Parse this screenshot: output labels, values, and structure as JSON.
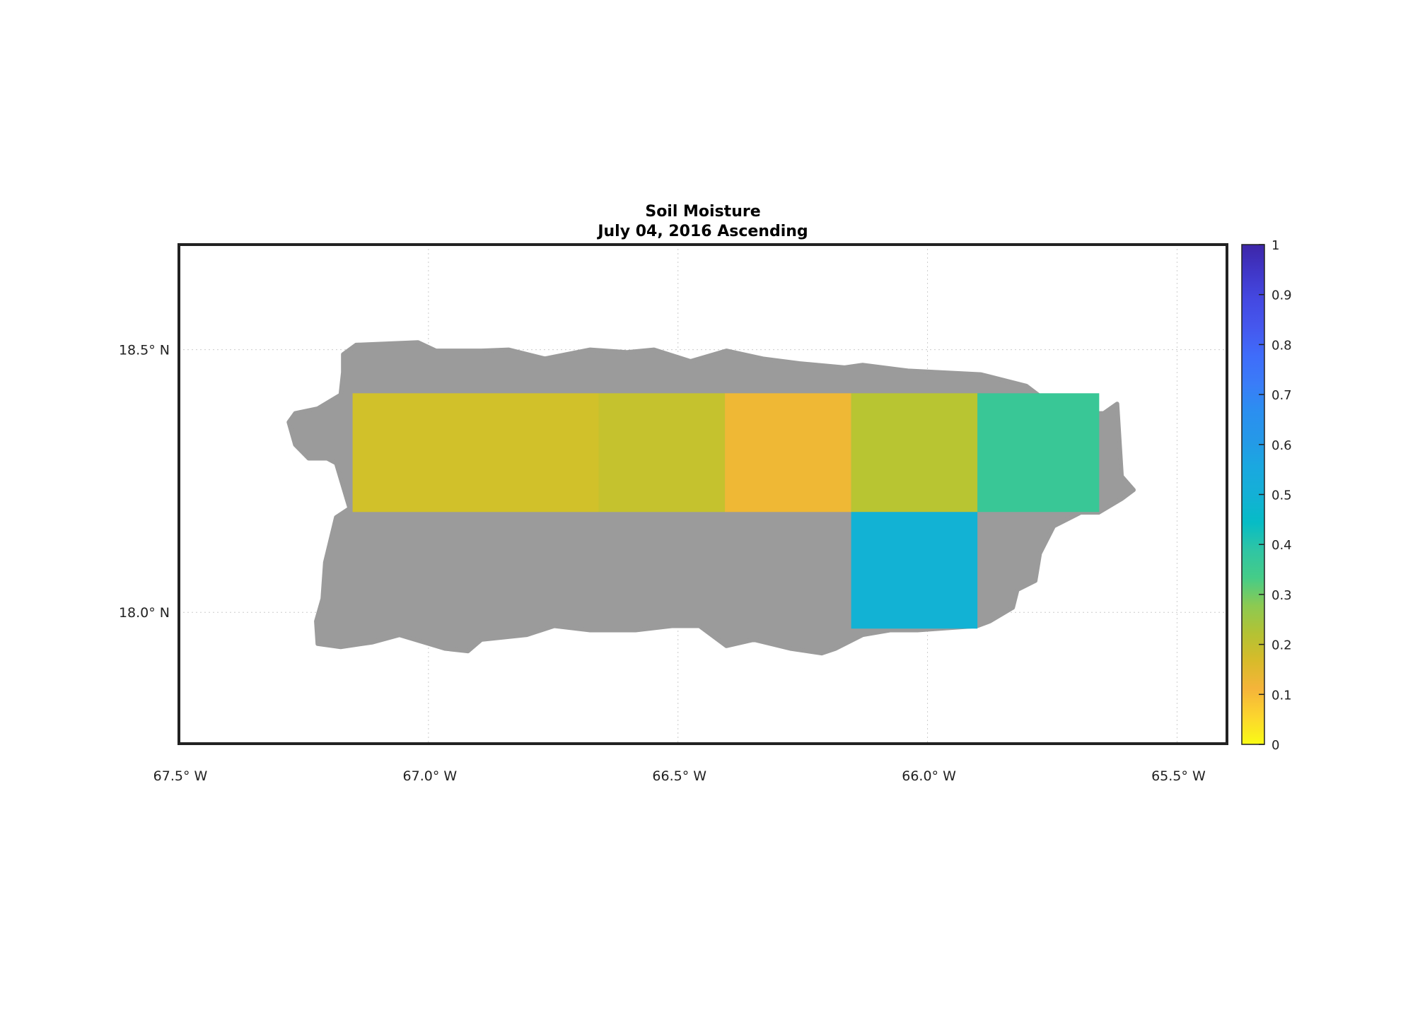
{
  "chart_data": {
    "type": "map",
    "title": "Soil Moisture",
    "subtitle": "July 04, 2016 Ascending",
    "xlim": [
      -67.5,
      -65.4
    ],
    "ylim": [
      17.75,
      18.7
    ],
    "grid": true,
    "x_ticks": [
      {
        "value": -67.5,
        "label": "67.5° W"
      },
      {
        "value": -67.0,
        "label": "67.0° W"
      },
      {
        "value": -66.5,
        "label": "66.5° W"
      },
      {
        "value": -66.0,
        "label": "66.0° W"
      },
      {
        "value": -65.5,
        "label": "65.5° W"
      }
    ],
    "y_ticks": [
      {
        "value": 18.5,
        "label": "18.5° N"
      },
      {
        "value": 18.0,
        "label": "18.0° N"
      }
    ],
    "land_color": "#9b9b9b",
    "land_outline": [
      [
        -67.171,
        18.491
      ],
      [
        -67.145,
        18.509
      ],
      [
        -67.021,
        18.514
      ],
      [
        -66.985,
        18.498
      ],
      [
        -66.894,
        18.498
      ],
      [
        -66.839,
        18.5
      ],
      [
        -66.767,
        18.483
      ],
      [
        -66.676,
        18.5
      ],
      [
        -66.603,
        18.495
      ],
      [
        -66.548,
        18.5
      ],
      [
        -66.475,
        18.478
      ],
      [
        -66.403,
        18.498
      ],
      [
        -66.33,
        18.483
      ],
      [
        -66.257,
        18.474
      ],
      [
        -66.166,
        18.466
      ],
      [
        -66.13,
        18.471
      ],
      [
        -66.039,
        18.46
      ],
      [
        -65.893,
        18.453
      ],
      [
        -65.802,
        18.431
      ],
      [
        -65.766,
        18.405
      ],
      [
        -65.693,
        18.379
      ],
      [
        -65.647,
        18.379
      ],
      [
        -65.62,
        18.397
      ],
      [
        -65.611,
        18.259
      ],
      [
        -65.587,
        18.233
      ],
      [
        -65.611,
        18.216
      ],
      [
        -65.657,
        18.19
      ],
      [
        -65.693,
        18.19
      ],
      [
        -65.747,
        18.164
      ],
      [
        -65.775,
        18.112
      ],
      [
        -65.784,
        18.06
      ],
      [
        -65.82,
        18.043
      ],
      [
        -65.829,
        18.009
      ],
      [
        -65.875,
        17.983
      ],
      [
        -65.9,
        17.974
      ],
      [
        -66.02,
        17.966
      ],
      [
        -66.075,
        17.966
      ],
      [
        -66.13,
        17.957
      ],
      [
        -66.184,
        17.931
      ],
      [
        -66.212,
        17.922
      ],
      [
        -66.275,
        17.931
      ],
      [
        -66.348,
        17.948
      ],
      [
        -66.403,
        17.936
      ],
      [
        -66.457,
        17.974
      ],
      [
        -66.512,
        17.974
      ],
      [
        -66.585,
        17.966
      ],
      [
        -66.676,
        17.966
      ],
      [
        -66.748,
        17.974
      ],
      [
        -66.803,
        17.957
      ],
      [
        -66.894,
        17.948
      ],
      [
        -66.921,
        17.926
      ],
      [
        -66.967,
        17.931
      ],
      [
        -67.058,
        17.957
      ],
      [
        -67.112,
        17.943
      ],
      [
        -67.176,
        17.934
      ],
      [
        -67.222,
        17.94
      ],
      [
        -67.225,
        17.983
      ],
      [
        -67.212,
        18.026
      ],
      [
        -67.207,
        18.095
      ],
      [
        -67.185,
        18.181
      ],
      [
        -67.158,
        18.198
      ],
      [
        -67.185,
        18.284
      ],
      [
        -67.203,
        18.293
      ],
      [
        -67.24,
        18.293
      ],
      [
        -67.267,
        18.319
      ],
      [
        -67.28,
        18.362
      ],
      [
        -67.267,
        18.379
      ],
      [
        -67.222,
        18.388
      ],
      [
        -67.176,
        18.414
      ],
      [
        -67.171,
        18.457
      ]
    ],
    "cells": [
      {
        "lon": [
          -67.152,
          -66.659
        ],
        "lat": [
          18.191,
          18.417
        ],
        "value": 0.25,
        "color": "#d1c12a"
      },
      {
        "lon": [
          -66.659,
          -66.406
        ],
        "lat": [
          18.191,
          18.417
        ],
        "value": 0.27,
        "color": "#c5c22e"
      },
      {
        "lon": [
          -66.406,
          -66.153
        ],
        "lat": [
          18.191,
          18.417
        ],
        "value": 0.19,
        "color": "#efb835"
      },
      {
        "lon": [
          -66.153,
          -65.9
        ],
        "lat": [
          18.191,
          18.417
        ],
        "value": 0.3,
        "color": "#b8c532"
      },
      {
        "lon": [
          -65.9,
          -65.656
        ],
        "lat": [
          18.191,
          18.417
        ],
        "value": 0.45,
        "color": "#39c796"
      },
      {
        "lon": [
          -66.153,
          -65.9
        ],
        "lat": [
          17.969,
          18.191
        ],
        "value": 0.58,
        "color": "#12b2d4"
      }
    ],
    "colorbar": {
      "range": [
        0,
        1
      ],
      "ticks": [
        "0",
        "0.1",
        "0.2",
        "0.3",
        "0.4",
        "0.5",
        "0.6",
        "0.7",
        "0.8",
        "0.9",
        "1"
      ],
      "colormap": "parula",
      "stops": [
        "#f9fb15",
        "#fcd52e",
        "#f5b43a",
        "#d8bb2a",
        "#b3c234",
        "#8cca52",
        "#45cc88",
        "#2fc5a4",
        "#06bcc6",
        "#14b0d6",
        "#1aa8e0",
        "#2598e8",
        "#2b8ff0",
        "#3a7cf8",
        "#3f6cfa",
        "#4558ee",
        "#4449e2",
        "#4037c8",
        "#3d26a8"
      ]
    }
  }
}
